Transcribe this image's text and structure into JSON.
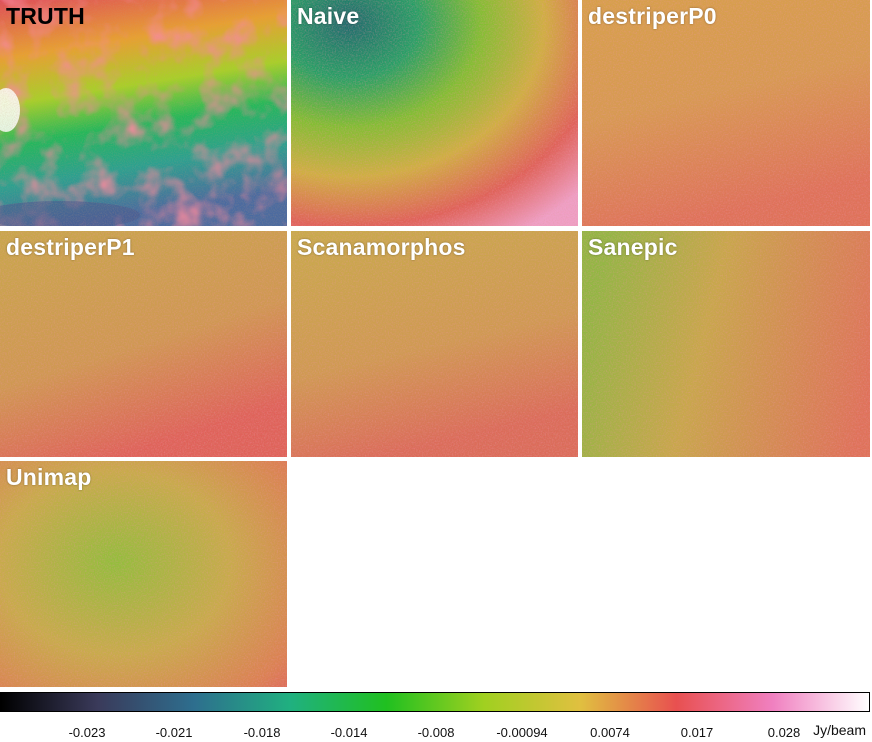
{
  "panels": [
    {
      "id": "truth",
      "label": "TRUTH"
    },
    {
      "id": "naive",
      "label": "Naive"
    },
    {
      "id": "p0",
      "label": "destriperP0"
    },
    {
      "id": "p1",
      "label": "destriperP1"
    },
    {
      "id": "scan",
      "label": "Scanamorphos"
    },
    {
      "id": "sanepic",
      "label": "Sanepic"
    },
    {
      "id": "unimap",
      "label": "Unimap"
    }
  ],
  "colorbar": {
    "ticks": [
      "-0.023",
      "-0.021",
      "-0.018",
      "-0.014",
      "-0.008",
      "-0.00094",
      "0.0074",
      "0.017",
      "0.028"
    ],
    "unit": "Jy/beam",
    "colors": [
      "#000000",
      "#3a3a5a",
      "#2e6e8e",
      "#20b080",
      "#20c020",
      "#a0d020",
      "#e0c040",
      "#e85050",
      "#f080c0",
      "#ffffff"
    ]
  }
}
